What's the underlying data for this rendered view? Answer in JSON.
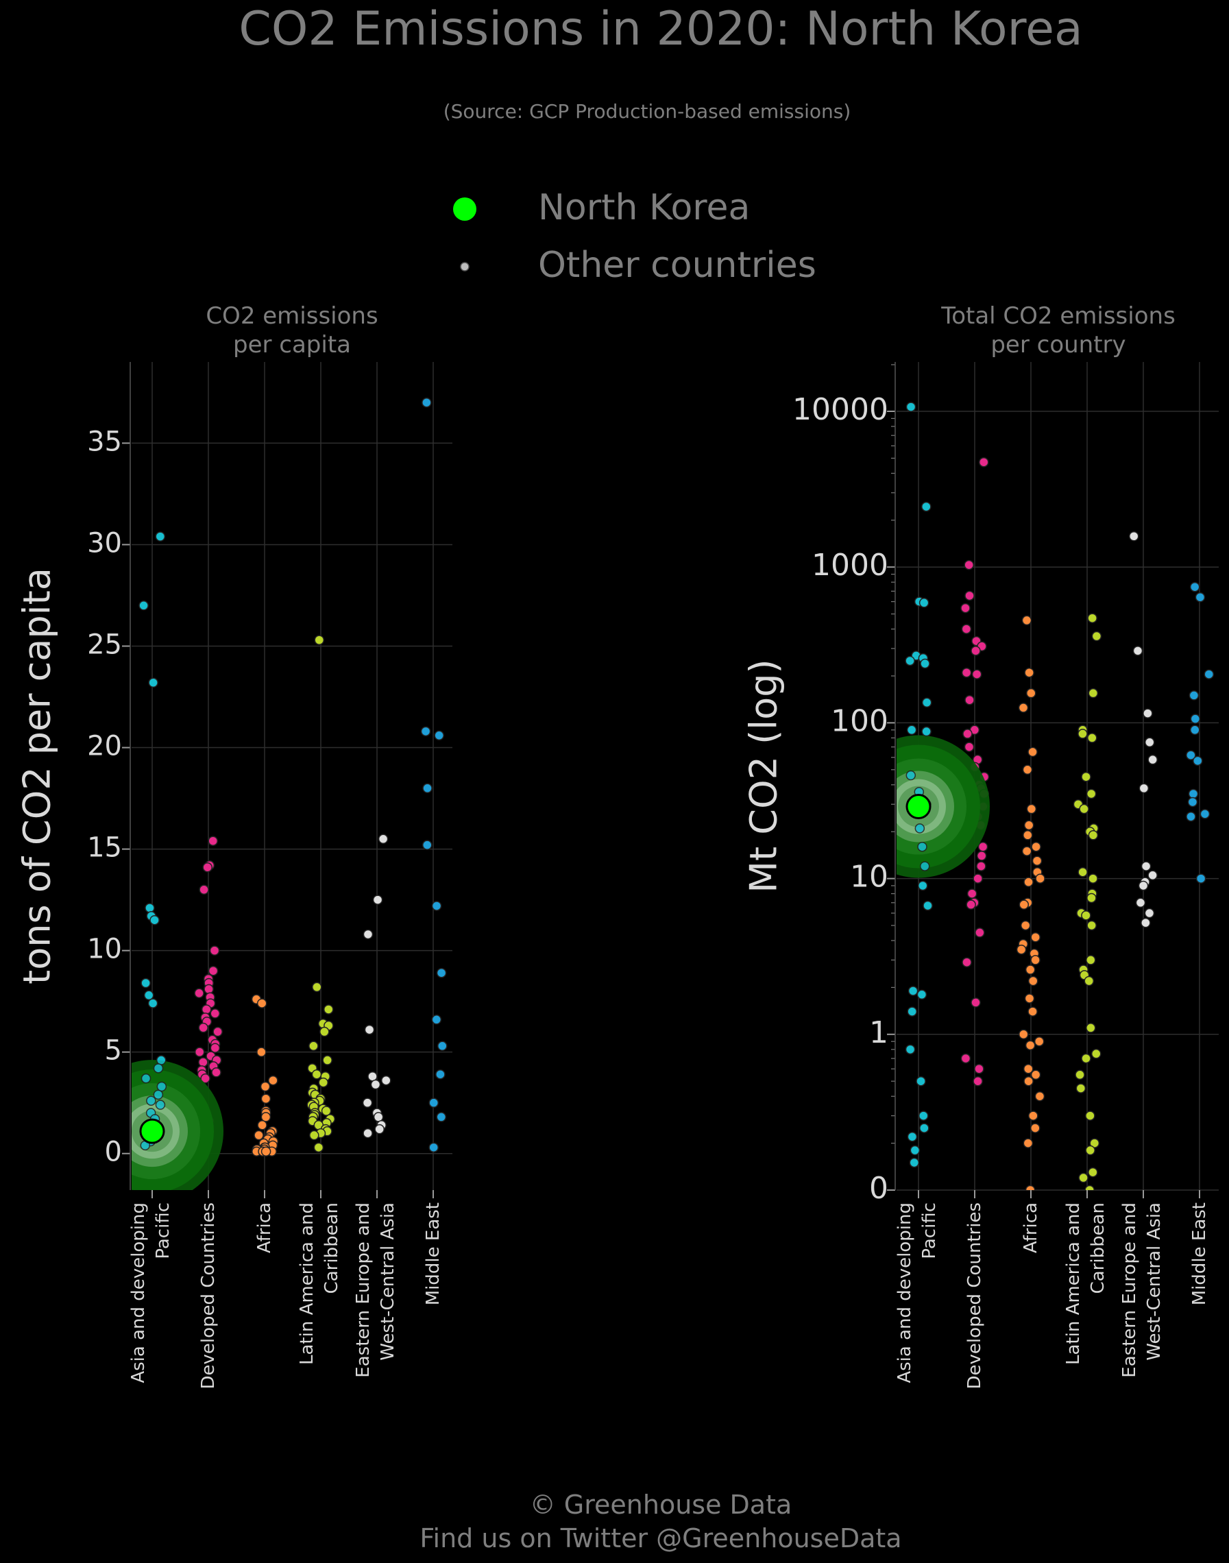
{
  "title": "CO2 Emissions in 2020: North Korea",
  "subtitle": "(Source: GCP Production-based emissions)",
  "legend": {
    "highlight_label": "North Korea",
    "other_label": "Other countries",
    "highlight_color": "#00ff00",
    "other_color": "#bdbdbd"
  },
  "footer": {
    "line1": "© Greenhouse Data",
    "line2": "Find us on Twitter @GreenhouseData"
  },
  "colors": {
    "background": "#000000",
    "grid": "#2e2e2e",
    "text": "#7f7f7f",
    "tick_text": "#d9d9d9",
    "regions": {
      "Asia and developing Pacific": "#17becf",
      "Developed Countries": "#e7298a",
      "Africa": "#fd8d3c",
      "Latin America and Caribbean": "#bcd72a",
      "Eastern Europe and West-Central Asia": "#e0e0e0",
      "Middle East": "#1f9fd8"
    }
  },
  "chart_data": [
    {
      "type": "scatter",
      "title": "CO2 emissions\nper capita",
      "ylabel": "tons of CO2 per capita",
      "yscale": "linear",
      "ylim": [
        -1.8,
        39
      ],
      "yticks": [
        0,
        5,
        10,
        15,
        20,
        25,
        30,
        35
      ],
      "ytick_labels": [
        "0",
        "5",
        "10",
        "15",
        "20",
        "25",
        "30",
        "35"
      ],
      "grid": true,
      "categories": [
        "Asia and developing\nPacific",
        "Developed Countries",
        "Africa",
        "Latin America and\nCaribbean",
        "Eastern Europe and\nWest-Central Asia",
        "Middle East"
      ],
      "highlight": {
        "name": "North Korea",
        "category": 0,
        "value": 1.1
      },
      "series": [
        {
          "region": "Asia and developing Pacific",
          "values": [
            30.4,
            27.0,
            23.2,
            12.1,
            11.7,
            11.5,
            8.4,
            7.8,
            7.4,
            4.6,
            4.2,
            3.7,
            3.3,
            2.9,
            2.6,
            2.4,
            2.0,
            1.7,
            1.4,
            1.2,
            1.0,
            0.8,
            0.6,
            0.4
          ]
        },
        {
          "region": "Developed Countries",
          "values": [
            15.4,
            14.2,
            14.1,
            13.0,
            10.0,
            9.0,
            8.6,
            8.4,
            8.1,
            7.9,
            7.7,
            7.4,
            7.1,
            6.9,
            6.7,
            6.5,
            6.2,
            6.0,
            5.6,
            5.4,
            5.2,
            5.0,
            4.8,
            4.6,
            4.5,
            4.3,
            4.1,
            4.0,
            3.9,
            3.7,
            1.6
          ]
        },
        {
          "region": "Africa",
          "values": [
            7.6,
            7.4,
            5.0,
            3.6,
            3.3,
            2.7,
            2.1,
            2.0,
            1.8,
            1.4,
            1.1,
            1.0,
            0.9,
            0.8,
            0.7,
            0.6,
            0.5,
            0.4,
            0.3,
            0.3,
            0.2,
            0.2,
            0.1,
            0.1,
            0.1,
            0.1
          ]
        },
        {
          "region": "Latin America and Caribbean",
          "values": [
            25.3,
            8.2,
            7.1,
            6.4,
            6.3,
            6.0,
            5.3,
            4.6,
            4.2,
            3.9,
            3.8,
            3.5,
            3.2,
            3.0,
            2.9,
            2.7,
            2.6,
            2.5,
            2.4,
            2.3,
            2.2,
            2.1,
            2.0,
            1.9,
            1.8,
            1.7,
            1.6,
            1.5,
            1.4,
            1.2,
            1.1,
            1.0,
            0.9,
            0.3
          ]
        },
        {
          "region": "Eastern Europe and West-Central Asia",
          "values": [
            15.5,
            12.5,
            10.8,
            6.1,
            3.8,
            3.6,
            3.4,
            2.5,
            2.0,
            1.8,
            1.4,
            1.2,
            1.0
          ]
        },
        {
          "region": "Middle East",
          "values": [
            37.0,
            20.8,
            20.6,
            18.0,
            15.2,
            12.2,
            8.9,
            6.6,
            5.3,
            3.9,
            2.5,
            1.8,
            0.3
          ]
        }
      ]
    },
    {
      "type": "scatter",
      "title": "Total CO2 emissions\nper country",
      "ylabel": "Mt CO2 (log)",
      "yscale": "log",
      "ylim": [
        0,
        20000
      ],
      "yticks": [
        0,
        1,
        10,
        100,
        1000,
        10000
      ],
      "ytick_labels": [
        "0",
        "1",
        "10",
        "100",
        "1000",
        "10000"
      ],
      "grid": true,
      "categories": [
        "Asia and developing\nPacific",
        "Developed Countries",
        "Africa",
        "Latin America and\nCaribbean",
        "Eastern Europe and\nWest-Central Asia",
        "Middle East"
      ],
      "highlight": {
        "name": "North Korea",
        "category": 0,
        "value": 29
      },
      "series": [
        {
          "region": "Asia and developing Pacific",
          "values": [
            10668,
            2442,
            600,
            590,
            270,
            260,
            250,
            240,
            135,
            90,
            88,
            46,
            36,
            30,
            21,
            16,
            12,
            9,
            6.7,
            1.9,
            1.8,
            1.4,
            0.8,
            0.5,
            0.3,
            0.25,
            0.22,
            0.18,
            0.15
          ]
        },
        {
          "region": "Developed Countries",
          "values": [
            4713,
            1032,
            655,
            545,
            400,
            335,
            310,
            290,
            210,
            205,
            140,
            90,
            85,
            70,
            58,
            52,
            45,
            40,
            38,
            35,
            32,
            30,
            29,
            25,
            22,
            18,
            16,
            14,
            12,
            10,
            8,
            7,
            6.8,
            4.5,
            2.9,
            1.6,
            0.7,
            0.6,
            0.5
          ]
        },
        {
          "region": "Africa",
          "values": [
            455,
            210,
            155,
            125,
            65,
            50,
            28,
            22,
            19,
            16,
            15,
            13,
            11,
            10,
            9.5,
            7,
            6.8,
            5,
            4.2,
            3.8,
            3.5,
            3.3,
            3.0,
            2.6,
            2.2,
            1.7,
            1.4,
            1.0,
            0.9,
            0.85,
            0.6,
            0.55,
            0.5,
            0.4,
            0.3,
            0.25,
            0.2,
            0.07
          ]
        },
        {
          "region": "Latin America and Caribbean",
          "values": [
            470,
            360,
            155,
            90,
            85,
            80,
            45,
            35,
            30,
            28,
            21,
            20,
            19,
            11,
            10,
            8,
            7.5,
            6,
            5.8,
            5,
            3,
            2.6,
            2.4,
            2.2,
            1.1,
            0.75,
            0.7,
            0.55,
            0.45,
            0.3,
            0.2,
            0.18,
            0.13,
            0.12,
            0.09
          ]
        },
        {
          "region": "Eastern Europe and West-Central Asia",
          "values": [
            1577,
            290,
            115,
            75,
            58,
            38,
            12,
            10.5,
            9.5,
            9,
            7,
            6,
            5.2
          ]
        },
        {
          "region": "Middle East",
          "values": [
            745,
            640,
            205,
            150,
            106,
            90,
            62,
            57,
            35,
            31,
            26,
            25,
            10
          ]
        }
      ]
    }
  ]
}
